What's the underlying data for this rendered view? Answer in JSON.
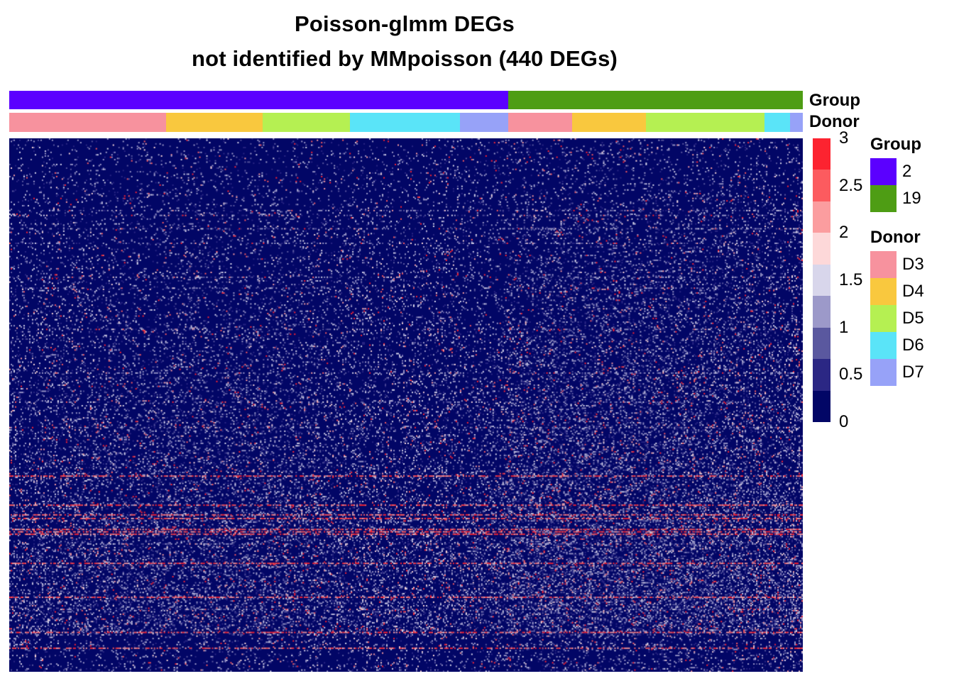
{
  "title_line1": "Poisson-glmm DEGs",
  "title_line2": "not identified by MMpoisson (440 DEGs)",
  "colors": {
    "group": {
      "2": "#5B00FF",
      "19": "#4E9D14"
    },
    "donor": {
      "D3": "#F7929E",
      "D4": "#F9C83E",
      "D5": "#B5F052",
      "D6": "#5AE4F8",
      "D7": "#97A2F8"
    },
    "scale": [
      "#020666",
      "#2B2784",
      "#5A589F",
      "#9C99C9",
      "#D8D6EB",
      "#FDD8D9",
      "#FB9D9F",
      "#FC5B5F",
      "#FC2330"
    ]
  },
  "annotation_rows": [
    "Group",
    "Donor"
  ],
  "chart_data": {
    "type": "heatmap",
    "title": "Poisson-glmm DEGs\nnot identified by MMpoisson (440 DEGs)",
    "rows": 440,
    "value_range": [
      0,
      3
    ],
    "colorbar_ticks": [
      "3",
      "2.5",
      "2",
      "1.5",
      "1",
      "0.5",
      "0"
    ],
    "column_annotations": {
      "group_segments": [
        {
          "name": "2",
          "fraction": 0.629
        },
        {
          "name": "19",
          "fraction": 0.371
        }
      ],
      "donor_segments": [
        {
          "name": "D3",
          "fraction": 0.198
        },
        {
          "name": "D4",
          "fraction": 0.121
        },
        {
          "name": "D5",
          "fraction": 0.11
        },
        {
          "name": "D6",
          "fraction": 0.139
        },
        {
          "name": "D7",
          "fraction": 0.061
        },
        {
          "name": "D3",
          "fraction": 0.08
        },
        {
          "name": "D4",
          "fraction": 0.093
        },
        {
          "name": "D5",
          "fraction": 0.15
        },
        {
          "name": "D6",
          "fraction": 0.032
        },
        {
          "name": "D7",
          "fraction": 0.016
        }
      ]
    },
    "legends": [
      {
        "title": "Group",
        "entries": [
          "2",
          "19"
        ]
      },
      {
        "title": "Donor",
        "entries": [
          "D3",
          "D4",
          "D5",
          "D6",
          "D7"
        ]
      }
    ]
  }
}
